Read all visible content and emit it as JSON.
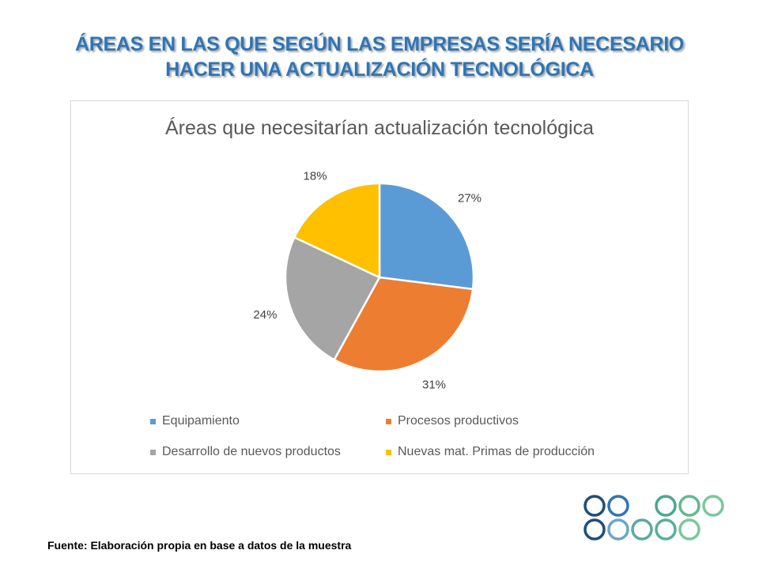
{
  "slide": {
    "title_line1": "ÁREAS EN LAS QUE SEGÚN LAS EMPRESAS SERÍA NECESARIO",
    "title_line2": "HACER UNA ACTUALIZACIÓN TECNOLÓGICA",
    "title_color": "#2e75b6",
    "source": "Fuente: Elaboración propia en base a datos de la muestra",
    "logo": "circles-logo-icon"
  },
  "chart_data": {
    "type": "pie",
    "title": "Áreas que necesitarían actualización tecnológica",
    "categories": [
      "Equipamiento",
      "Procesos productivos",
      "Desarrollo de nuevos productos",
      "Nuevas mat. Primas de producción"
    ],
    "values": [
      27,
      31,
      24,
      18
    ],
    "labels": [
      "27%",
      "31%",
      "24%",
      "18%"
    ],
    "colors": [
      "#5b9bd5",
      "#ed7d31",
      "#a5a5a5",
      "#ffc000"
    ],
    "legend_position": "bottom",
    "start_angle": "12 o'clock, clockwise"
  }
}
